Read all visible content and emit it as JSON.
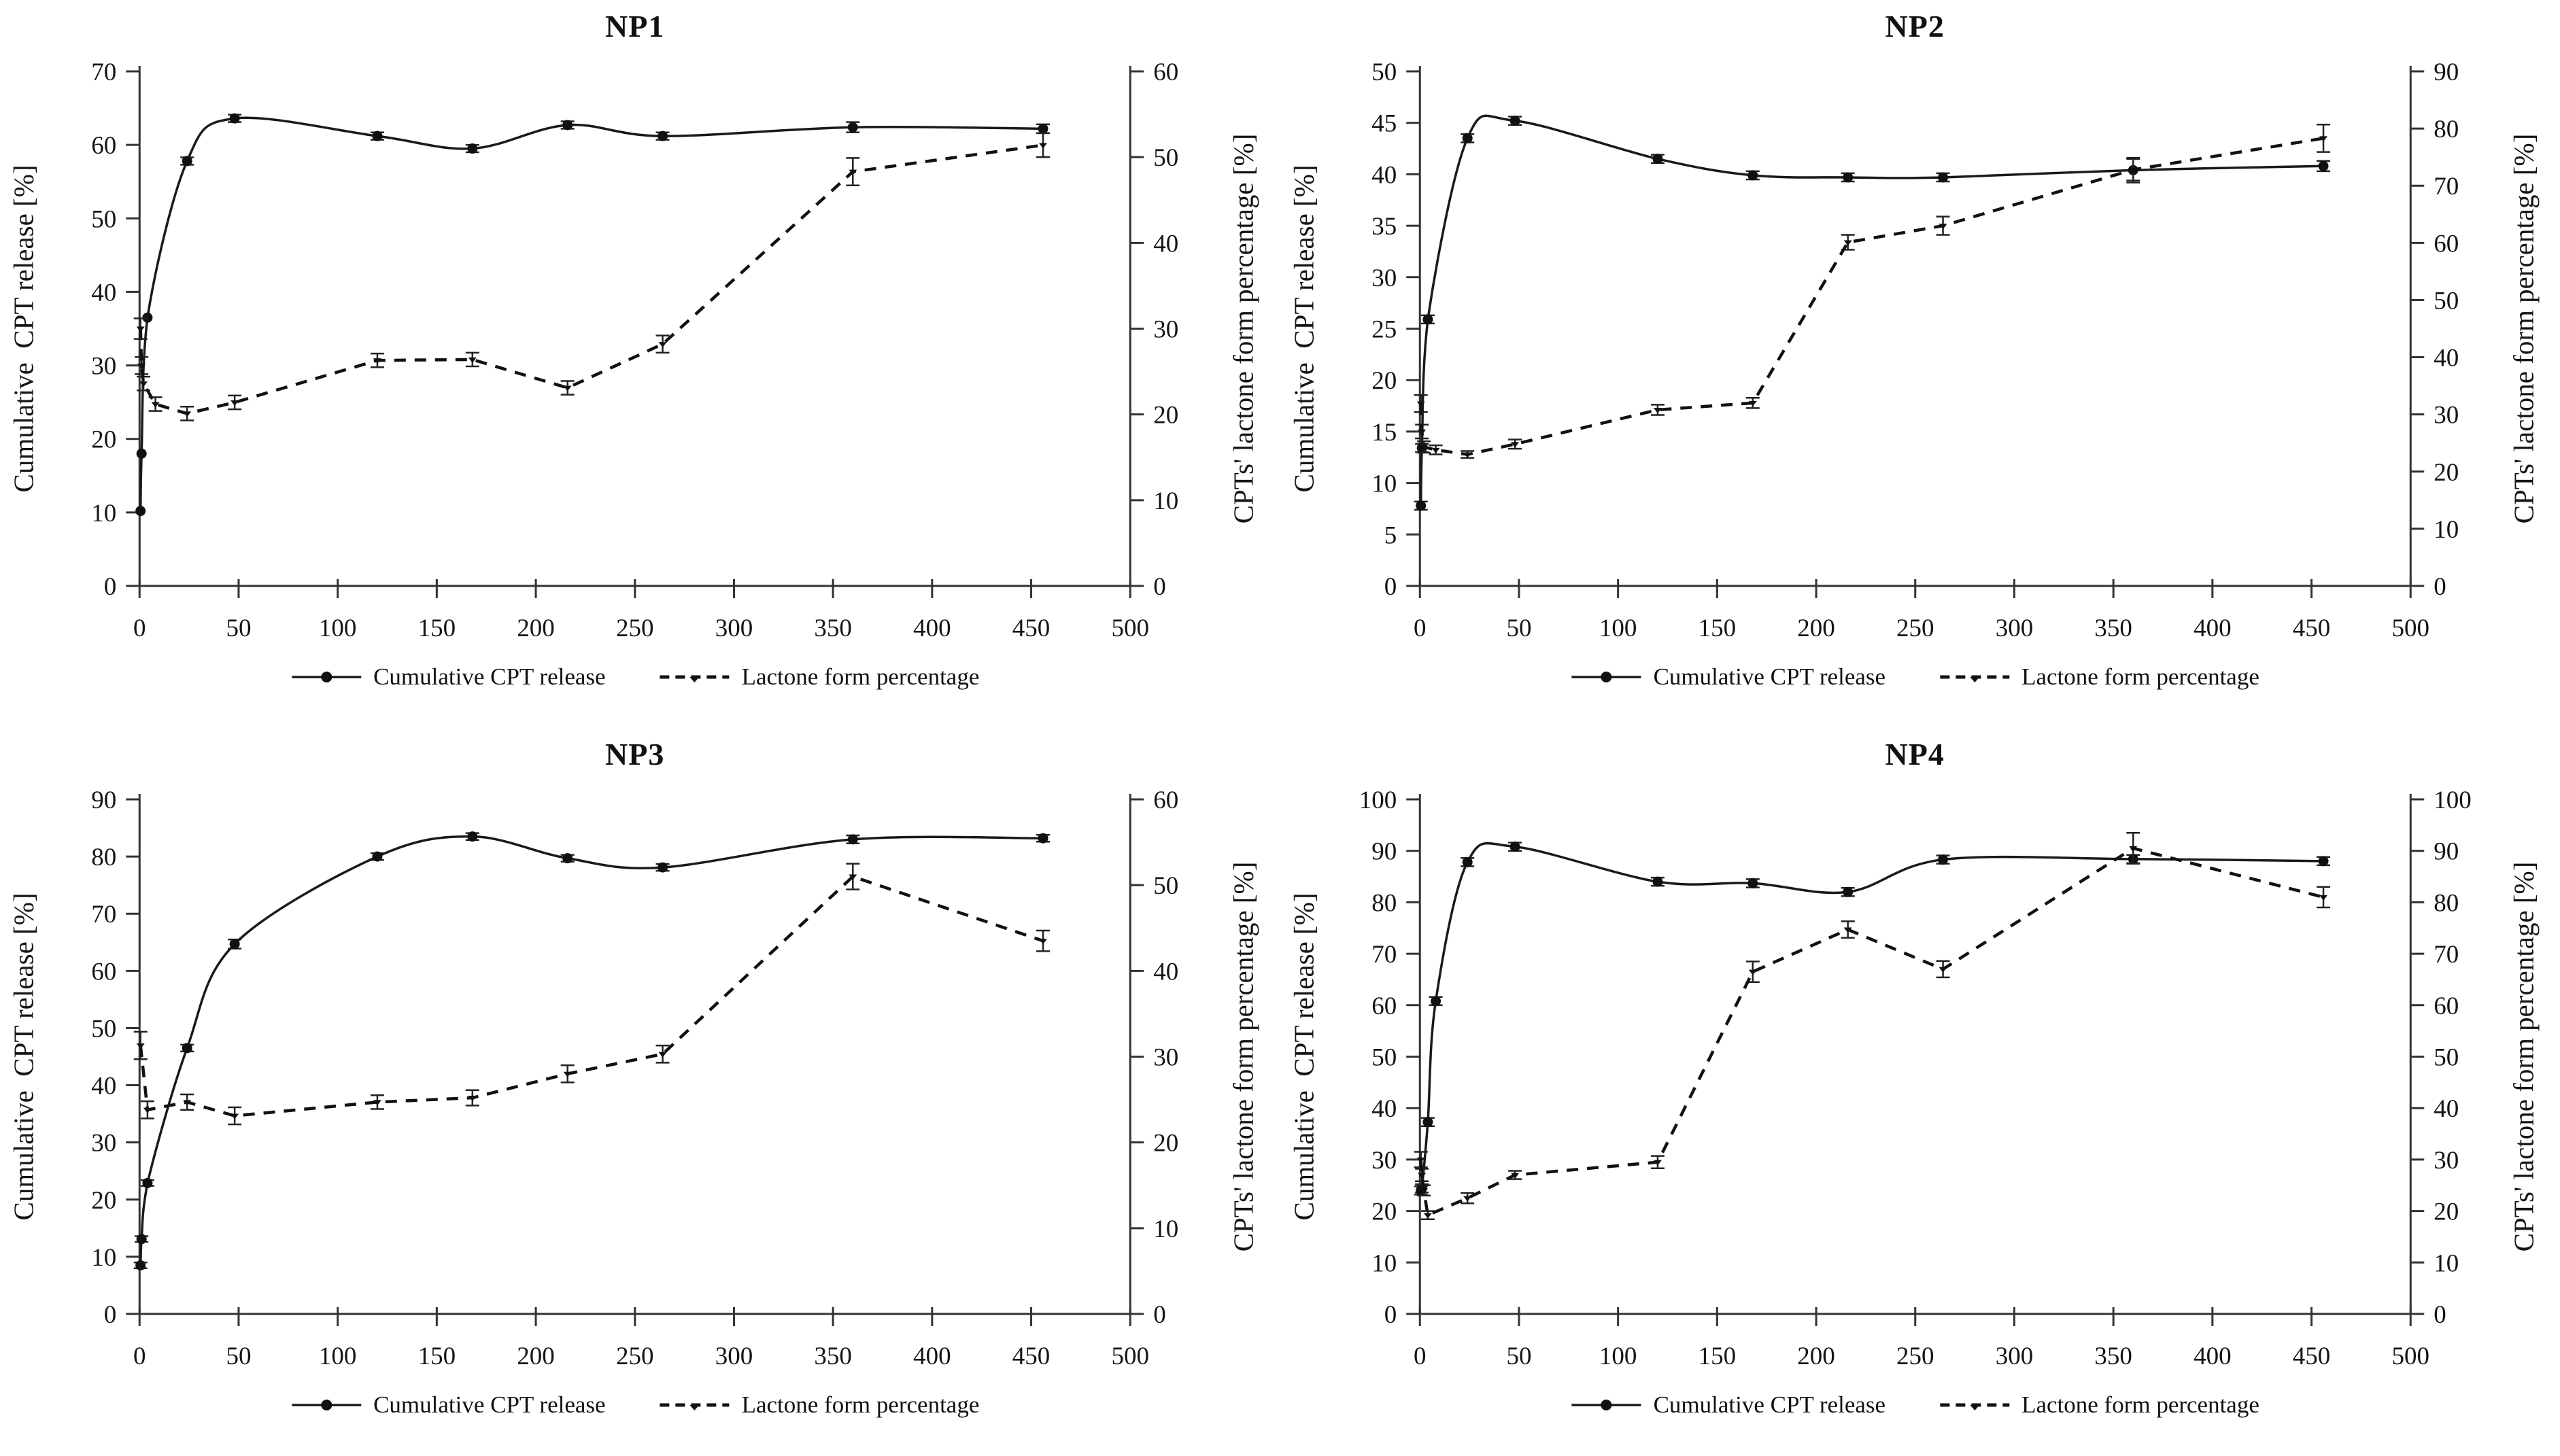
{
  "colors": {
    "line": "#1a1a1a",
    "background": "#ffffff",
    "axis": "#333333"
  },
  "legend": {
    "release_label": "Cumulative CPT release",
    "lactone_label": "Lactone form percentage"
  },
  "chart_data": [
    {
      "type": "line",
      "title": "NP1",
      "x_axis": {
        "min": 0,
        "max": 500,
        "step": 50
      },
      "left_axis": {
        "label": "Cumulative  CPT release [%]",
        "min": 0,
        "max": 70,
        "step": 10
      },
      "right_axis": {
        "label": "CPTs' lactone form percentage [%]",
        "min": 0,
        "max": 60,
        "step": 10
      },
      "series": [
        {
          "name": "Cumulative CPT release",
          "axis": "left",
          "style": "solid",
          "marker": "circle",
          "x": [
            0.5,
            1,
            4,
            24,
            48,
            120,
            168,
            216,
            264,
            360,
            456
          ],
          "y": [
            10.2,
            18,
            36.5,
            57.8,
            63.6,
            61.2,
            59.5,
            62.7,
            61.2,
            62.4,
            62.2
          ],
          "err": [
            0,
            0,
            0,
            0.5,
            0.5,
            0.5,
            0.5,
            0.5,
            0.5,
            0.7,
            0.6
          ]
        },
        {
          "name": "Lactone form percentage",
          "axis": "right",
          "style": "dashed",
          "marker": "triangle",
          "x": [
            0.5,
            1,
            2,
            8,
            24,
            48,
            120,
            168,
            216,
            264,
            360,
            456
          ],
          "y": [
            30,
            25.7,
            23.6,
            21.2,
            20.1,
            21.4,
            26.3,
            26.4,
            23.1,
            28.2,
            48.3,
            51.4
          ],
          "err": [
            1.2,
            1,
            0.8,
            0.8,
            0.8,
            0.8,
            0.8,
            0.8,
            0.8,
            1,
            1.6,
            1.4
          ]
        }
      ]
    },
    {
      "type": "line",
      "title": "NP2",
      "x_axis": {
        "min": 0,
        "max": 500,
        "step": 50
      },
      "left_axis": {
        "label": "Cumulative  CPT release [%]",
        "min": 0,
        "max": 50,
        "step": 5
      },
      "right_axis": {
        "label": "CPTs' lactone form percentage [%]",
        "min": 0,
        "max": 90,
        "step": 10
      },
      "series": [
        {
          "name": "Cumulative CPT release",
          "axis": "left",
          "style": "solid",
          "marker": "circle",
          "x": [
            0.5,
            1,
            4,
            24,
            48,
            120,
            168,
            216,
            264,
            360,
            456
          ],
          "y": [
            7.8,
            13.4,
            25.9,
            43.5,
            45.2,
            41.5,
            39.9,
            39.7,
            39.7,
            40.4,
            40.8
          ],
          "err": [
            0.4,
            0.4,
            0.4,
            0.4,
            0.4,
            0.4,
            0.4,
            0.4,
            0.4,
            1.2,
            0.5
          ]
        },
        {
          "name": "Lactone form percentage",
          "axis": "right",
          "style": "dashed",
          "marker": "triangle",
          "x": [
            0.5,
            1,
            2,
            8,
            24,
            48,
            120,
            168,
            216,
            264,
            360,
            456
          ],
          "y": [
            31.9,
            27,
            24.3,
            23.8,
            23,
            24.8,
            30.8,
            32,
            60.1,
            63,
            72.8,
            78.3
          ],
          "err": [
            1.5,
            1.2,
            1,
            0.8,
            0.6,
            0.8,
            0.9,
            0.9,
            1.3,
            1.6,
            1.9,
            2.4
          ]
        }
      ]
    },
    {
      "type": "line",
      "title": "NP3",
      "x_axis": {
        "min": 0,
        "max": 500,
        "step": 50
      },
      "left_axis": {
        "label": "Cumulative  CPT release [%]",
        "min": 0,
        "max": 90,
        "step": 10
      },
      "right_axis": {
        "label": "CPTs' lactone form percentage [%]",
        "min": 0,
        "max": 60,
        "step": 10
      },
      "series": [
        {
          "name": "Cumulative CPT release",
          "axis": "left",
          "style": "solid",
          "marker": "circle",
          "x": [
            0.5,
            1,
            4,
            24,
            48,
            120,
            168,
            216,
            264,
            360,
            456
          ],
          "y": [
            8.5,
            13.1,
            22.9,
            46.5,
            64.7,
            80,
            83.5,
            79.7,
            78.1,
            83,
            83.2
          ],
          "err": [
            0.5,
            0.5,
            0.5,
            0.6,
            0.8,
            0.6,
            0.6,
            0.6,
            0.6,
            0.7,
            0.6
          ]
        },
        {
          "name": "Lactone form percentage",
          "axis": "right",
          "style": "dashed",
          "marker": "triangle",
          "x": [
            0.5,
            4,
            24,
            48,
            120,
            168,
            216,
            264,
            360,
            456
          ],
          "y": [
            31.3,
            23.8,
            24.7,
            23.1,
            24.7,
            25.2,
            28,
            30.3,
            51,
            43.5
          ],
          "err": [
            1.6,
            1,
            0.9,
            1,
            0.8,
            0.9,
            1,
            1,
            1.5,
            1.2
          ]
        }
      ]
    },
    {
      "type": "line",
      "title": "NP4",
      "x_axis": {
        "min": 0,
        "max": 500,
        "step": 50
      },
      "left_axis": {
        "label": "Cumulative  CPT release [%]",
        "min": 0,
        "max": 100,
        "step": 10
      },
      "right_axis": {
        "label": "CPTs' lactone form percentage [%]",
        "min": 0,
        "max": 100,
        "step": 10
      },
      "series": [
        {
          "name": "Cumulative CPT release",
          "axis": "left",
          "style": "solid",
          "marker": "circle",
          "x": [
            0.5,
            1,
            4,
            8,
            24,
            48,
            120,
            168,
            216,
            264,
            360,
            456
          ],
          "y": [
            24,
            24.4,
            37.3,
            60.8,
            87.8,
            90.8,
            84,
            83.7,
            82,
            88.3,
            88.4,
            88
          ],
          "err": [
            0.8,
            0.8,
            0.8,
            0.8,
            0.8,
            0.8,
            0.8,
            0.8,
            0.8,
            0.8,
            0.8,
            0.8
          ]
        },
        {
          "name": "Lactone form percentage",
          "axis": "right",
          "style": "dashed",
          "marker": "triangle",
          "x": [
            0.5,
            1,
            2,
            4,
            24,
            48,
            120,
            168,
            216,
            264,
            360,
            456
          ],
          "y": [
            30,
            27,
            24,
            19.2,
            22.5,
            27,
            29.5,
            66.5,
            74.7,
            67,
            90.5,
            81
          ],
          "err": [
            1.5,
            1.2,
            1,
            0.8,
            1,
            0.8,
            1.2,
            2,
            1.6,
            1.6,
            3,
            2
          ]
        }
      ]
    }
  ]
}
